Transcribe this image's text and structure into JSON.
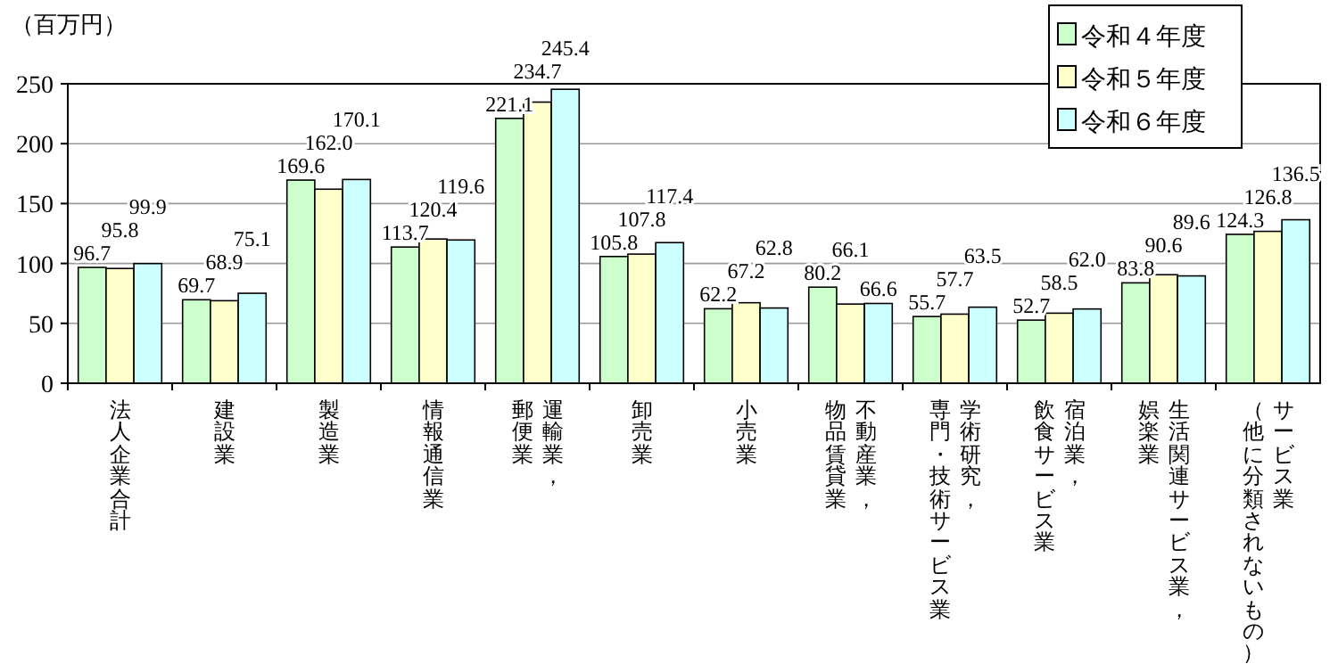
{
  "chart_data": {
    "type": "bar",
    "ylabel": "（百万円）",
    "categories": [
      "法人企業合計",
      "建設業",
      "製造業",
      "情報通信業",
      "運輸業，郵便業",
      "卸売業",
      "小売業",
      "不動産業，物品賃貸業",
      "学術研究，専門・技術サービス業",
      "宿泊業，飲食サービス業",
      "生活関連サービス業，娯楽業",
      "サービス業（他に分類されないもの）"
    ],
    "series": [
      {
        "name": "令和４年度",
        "color": "#ccffcc",
        "values": [
          96.7,
          69.7,
          169.6,
          113.7,
          221.1,
          105.8,
          62.2,
          80.2,
          55.7,
          52.7,
          83.8,
          124.3
        ]
      },
      {
        "name": "令和５年度",
        "color": "#ffffcc",
        "values": [
          95.8,
          68.9,
          162.0,
          120.4,
          234.7,
          107.8,
          67.2,
          66.1,
          57.7,
          58.5,
          90.6,
          126.8
        ],
        "value_labels": [
          "95.8",
          "68.9",
          "162.0",
          "120.4",
          "234.7",
          "107.8",
          "67.2",
          "66.1",
          "57.7",
          "58.5",
          "90.6",
          "126.8"
        ]
      },
      {
        "name": "令和６年度",
        "color": "#ccffff",
        "values": [
          99.9,
          75.1,
          170.1,
          119.6,
          245.4,
          117.4,
          62.8,
          66.6,
          63.5,
          62.0,
          89.6,
          136.5
        ],
        "value_labels": [
          "99.9",
          "75.1",
          "170.1",
          "119.6",
          "245.4",
          "117.4",
          "62.8",
          "66.6",
          "63.5",
          "62.0",
          "89.6",
          "136.5"
        ]
      }
    ],
    "ylim": [
      0,
      250
    ],
    "yticks": [
      0,
      50,
      100,
      150,
      200,
      250
    ],
    "grid": "y",
    "legend": "top right",
    "data_labels": true
  }
}
